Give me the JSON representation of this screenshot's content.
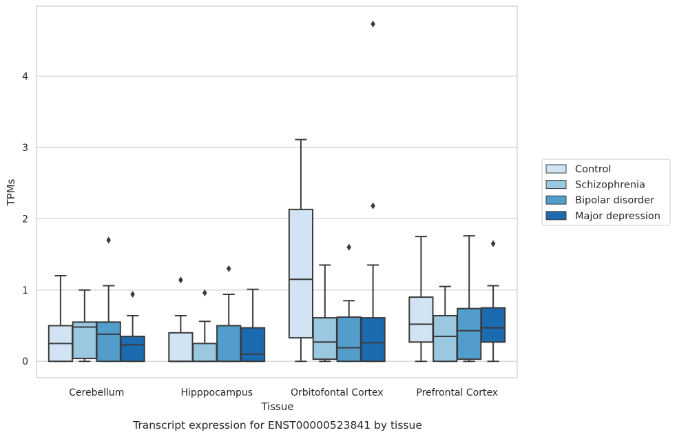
{
  "chart_data": {
    "type": "boxplot",
    "title": "",
    "caption": "Transcript expression for ENST00000523841 by tissue",
    "xlabel": "Tissue",
    "ylabel": "TPMs",
    "ylim": [
      -0.23,
      4.98
    ],
    "yticks": [
      0,
      1,
      2,
      3,
      4
    ],
    "ytick_labels": [
      "0",
      "1",
      "2",
      "3",
      "4"
    ],
    "grid": "horizontal",
    "legend_position": "right",
    "categories": [
      "Cerebellum",
      "Hipppocampus",
      "Orbitofontal Cortex",
      "Prefrontal Cortex"
    ],
    "series": [
      {
        "name": "Control",
        "color": "#d2e3f3",
        "boxes": [
          {
            "whislo": 0,
            "q1": 0,
            "med": 0.25,
            "q3": 0.5,
            "whishi": 1.2,
            "fliers": []
          },
          {
            "whislo": 0,
            "q1": 0,
            "med": 0,
            "q3": 0.4,
            "whishi": 0.64,
            "fliers": [
              1.14
            ]
          },
          {
            "whislo": 0,
            "q1": 0.33,
            "med": 1.15,
            "q3": 2.13,
            "whishi": 3.11,
            "fliers": []
          },
          {
            "whislo": 0,
            "q1": 0.27,
            "med": 0.52,
            "q3": 0.9,
            "whishi": 1.75,
            "fliers": []
          }
        ]
      },
      {
        "name": "Schizophrenia",
        "color": "#9ac8e0",
        "boxes": [
          {
            "whislo": 0,
            "q1": 0.04,
            "med": 0.48,
            "q3": 0.55,
            "whishi": 1.0,
            "fliers": []
          },
          {
            "whislo": 0,
            "q1": 0,
            "med": 0,
            "q3": 0.25,
            "whishi": 0.56,
            "fliers": [
              0.96
            ]
          },
          {
            "whislo": 0,
            "q1": 0.03,
            "med": 0.27,
            "q3": 0.61,
            "whishi": 1.35,
            "fliers": []
          },
          {
            "whislo": 0,
            "q1": 0,
            "med": 0.35,
            "q3": 0.64,
            "whishi": 1.05,
            "fliers": []
          }
        ]
      },
      {
        "name": "Bipolar disorder",
        "color": "#529dcc",
        "boxes": [
          {
            "whislo": 0,
            "q1": 0,
            "med": 0.38,
            "q3": 0.55,
            "whishi": 1.06,
            "fliers": [
              1.7
            ]
          },
          {
            "whislo": 0,
            "q1": 0,
            "med": 0,
            "q3": 0.5,
            "whishi": 0.94,
            "fliers": [
              1.3
            ]
          },
          {
            "whislo": 0,
            "q1": 0,
            "med": 0.19,
            "q3": 0.62,
            "whishi": 0.85,
            "fliers": [
              1.6
            ]
          },
          {
            "whislo": 0,
            "q1": 0.03,
            "med": 0.43,
            "q3": 0.74,
            "whishi": 1.76,
            "fliers": []
          }
        ]
      },
      {
        "name": "Major depression",
        "color": "#1c6aaf",
        "boxes": [
          {
            "whislo": 0,
            "q1": 0,
            "med": 0.23,
            "q3": 0.35,
            "whishi": 0.64,
            "fliers": [
              0.94
            ]
          },
          {
            "whislo": 0,
            "q1": 0,
            "med": 0.1,
            "q3": 0.47,
            "whishi": 1.01,
            "fliers": []
          },
          {
            "whislo": 0,
            "q1": 0,
            "med": 0.26,
            "q3": 0.61,
            "whishi": 1.35,
            "fliers": [
              2.18,
              4.73
            ]
          },
          {
            "whislo": 0,
            "q1": 0.27,
            "med": 0.47,
            "q3": 0.75,
            "whishi": 1.06,
            "fliers": [
              1.65
            ]
          }
        ]
      }
    ]
  }
}
